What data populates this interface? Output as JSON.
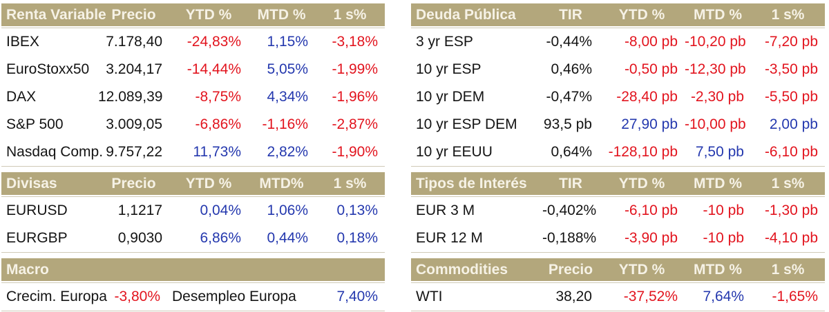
{
  "colors": {
    "header_bg": "#b3a77c",
    "header_text": "#f6f2e6",
    "negative": "#e2141e",
    "positive": "#2438ae",
    "neutral": "#141414"
  },
  "sections": {
    "renta_variable": {
      "title": "Renta Variable",
      "columns": [
        "Precio",
        "YTD %",
        "MTD %",
        "1 s%"
      ],
      "rows": [
        {
          "label": "IBEX",
          "values": [
            {
              "text": "7.178,40",
              "color": "plain"
            },
            {
              "text": "-24,83%",
              "color": "neg"
            },
            {
              "text": "1,15%",
              "color": "pos"
            },
            {
              "text": "-3,18%",
              "color": "neg"
            }
          ]
        },
        {
          "label": "EuroStoxx50",
          "values": [
            {
              "text": "3.204,17",
              "color": "plain"
            },
            {
              "text": "-14,44%",
              "color": "neg"
            },
            {
              "text": "5,05%",
              "color": "pos"
            },
            {
              "text": "-1,99%",
              "color": "neg"
            }
          ]
        },
        {
          "label": "DAX",
          "values": [
            {
              "text": "12.089,39",
              "color": "plain"
            },
            {
              "text": "-8,75%",
              "color": "neg"
            },
            {
              "text": "4,34%",
              "color": "pos"
            },
            {
              "text": "-1,96%",
              "color": "neg"
            }
          ]
        },
        {
          "label": "S&P 500",
          "values": [
            {
              "text": "3.009,05",
              "color": "plain"
            },
            {
              "text": "-6,86%",
              "color": "neg"
            },
            {
              "text": "-1,16%",
              "color": "neg"
            },
            {
              "text": "-2,87%",
              "color": "neg"
            }
          ]
        },
        {
          "label": "Nasdaq Comp.",
          "values": [
            {
              "text": "9.757,22",
              "color": "plain"
            },
            {
              "text": "11,73%",
              "color": "pos"
            },
            {
              "text": "2,82%",
              "color": "pos"
            },
            {
              "text": "-1,90%",
              "color": "neg"
            }
          ]
        }
      ]
    },
    "divisas": {
      "title": "Divisas",
      "columns": [
        "Precio",
        "YTD %",
        "MTD%",
        "1 s%"
      ],
      "rows": [
        {
          "label": "EURUSD",
          "values": [
            {
              "text": "1,1217",
              "color": "plain"
            },
            {
              "text": "0,04%",
              "color": "pos"
            },
            {
              "text": "1,06%",
              "color": "pos"
            },
            {
              "text": "0,13%",
              "color": "pos"
            }
          ]
        },
        {
          "label": "EURGBP",
          "values": [
            {
              "text": "0,9030",
              "color": "plain"
            },
            {
              "text": "6,86%",
              "color": "pos"
            },
            {
              "text": "0,44%",
              "color": "pos"
            },
            {
              "text": "0,18%",
              "color": "pos"
            }
          ]
        }
      ]
    },
    "macro": {
      "title": "Macro",
      "items": [
        {
          "kind": "label",
          "text": "Crecim. Europa"
        },
        {
          "kind": "value",
          "text": "-3,80%",
          "color": "neg"
        },
        {
          "kind": "label",
          "text": "Desempleo Europa"
        },
        {
          "kind": "value",
          "text": "7,40%",
          "color": "pos"
        }
      ]
    },
    "deuda_publica": {
      "title": "Deuda Pública",
      "columns": [
        "TIR",
        "YTD %",
        "MTD %",
        "1 s%"
      ],
      "rows": [
        {
          "label": "3 yr ESP",
          "values": [
            {
              "text": "-0,44%",
              "color": "plain"
            },
            {
              "text": "-8,00 pb",
              "color": "neg"
            },
            {
              "text": "-10,20 pb",
              "color": "neg"
            },
            {
              "text": "-7,20 pb",
              "color": "neg"
            }
          ]
        },
        {
          "label": "10 yr ESP",
          "values": [
            {
              "text": "0,46%",
              "color": "plain"
            },
            {
              "text": "-0,50 pb",
              "color": "neg"
            },
            {
              "text": "-12,30 pb",
              "color": "neg"
            },
            {
              "text": "-3,50 pb",
              "color": "neg"
            }
          ]
        },
        {
          "label": "10 yr DEM",
          "values": [
            {
              "text": "-0,47%",
              "color": "plain"
            },
            {
              "text": "-28,40 pb",
              "color": "neg"
            },
            {
              "text": "-2,30 pb",
              "color": "neg"
            },
            {
              "text": "-5,50 pb",
              "color": "neg"
            }
          ]
        },
        {
          "label": "10 yr ESP DEM",
          "values": [
            {
              "text": "93,5 pb",
              "color": "plain"
            },
            {
              "text": "27,90 pb",
              "color": "pos"
            },
            {
              "text": "-10,00 pb",
              "color": "neg"
            },
            {
              "text": "2,00 pb",
              "color": "pos"
            }
          ]
        },
        {
          "label": "10 yr EEUU",
          "values": [
            {
              "text": "0,64%",
              "color": "plain"
            },
            {
              "text": "-128,10 pb",
              "color": "neg"
            },
            {
              "text": "7,50 pb",
              "color": "pos"
            },
            {
              "text": "-6,10 pb",
              "color": "neg"
            }
          ]
        }
      ]
    },
    "tipos_interes": {
      "title": "Tipos de Interés",
      "columns": [
        "TIR",
        "YTD %",
        "MTD %",
        "1 s%"
      ],
      "rows": [
        {
          "label": "EUR 3 M",
          "values": [
            {
              "text": "-0,402%",
              "color": "plain"
            },
            {
              "text": "-6,10 pb",
              "color": "neg"
            },
            {
              "text": "-10 pb",
              "color": "neg"
            },
            {
              "text": "-1,30 pb",
              "color": "neg"
            }
          ]
        },
        {
          "label": "EUR 12 M",
          "values": [
            {
              "text": "-0,188%",
              "color": "plain"
            },
            {
              "text": "-3,90 pb",
              "color": "neg"
            },
            {
              "text": "-10 pb",
              "color": "neg"
            },
            {
              "text": "-4,10 pb",
              "color": "neg"
            }
          ]
        }
      ]
    },
    "commodities": {
      "title": "Commodities",
      "columns": [
        "Precio",
        "YTD %",
        "MTD %",
        "1 s%"
      ],
      "rows": [
        {
          "label": "WTI",
          "values": [
            {
              "text": "38,20",
              "color": "plain"
            },
            {
              "text": "-37,52%",
              "color": "neg"
            },
            {
              "text": "7,64%",
              "color": "pos"
            },
            {
              "text": "-1,65%",
              "color": "neg"
            }
          ]
        }
      ]
    }
  }
}
